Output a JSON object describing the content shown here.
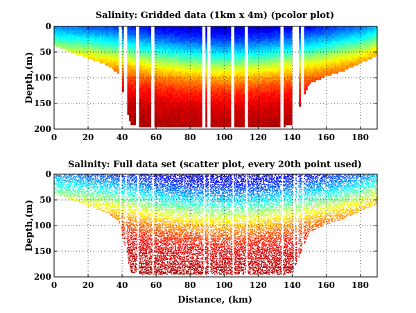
{
  "chart_data": [
    {
      "type": "heatmap",
      "title": "Salinity: Gridded data (1km x 4m) (pcolor plot)",
      "xlabel": "",
      "ylabel": "Depth,(m)",
      "xlim": [
        0,
        190
      ],
      "ylim": [
        200,
        0
      ],
      "xticks": [
        0,
        20,
        40,
        60,
        80,
        100,
        120,
        140,
        160,
        180
      ],
      "yticks": [
        0,
        50,
        100,
        150,
        200
      ],
      "grid": true,
      "colormap": "jet",
      "data_bottom_profile": {
        "distance_km": [
          0,
          10,
          20,
          30,
          38,
          45,
          55,
          70,
          90,
          110,
          130,
          140,
          150,
          160,
          170,
          180,
          190
        ],
        "depth_m": [
          35,
          48,
          60,
          72,
          90,
          190,
          195,
          195,
          195,
          195,
          195,
          190,
          110,
          95,
          85,
          70,
          55
        ]
      },
      "gaps_km": [
        39,
        42,
        49,
        58,
        88,
        91,
        105,
        113,
        134,
        141,
        143,
        146
      ],
      "isohaline_depth_m": {
        "distance_km": [
          0,
          20,
          40,
          60,
          80,
          100,
          120,
          140,
          160,
          180,
          190
        ],
        "depth_m": [
          28,
          34,
          42,
          55,
          62,
          65,
          62,
          55,
          45,
          32,
          20
        ]
      }
    },
    {
      "type": "scatter",
      "title": "Salinity: Full data set (scatter plot, every 20th point used)",
      "xlabel": "Distance, (km)",
      "ylabel": "Depth,(m)",
      "xlim": [
        0,
        190
      ],
      "ylim": [
        200,
        0
      ],
      "xticks": [
        0,
        20,
        40,
        60,
        80,
        100,
        120,
        140,
        160,
        180
      ],
      "yticks": [
        0,
        50,
        100,
        150,
        200
      ],
      "grid": true,
      "colormap": "jet",
      "data_bottom_profile": {
        "distance_km": [
          0,
          10,
          20,
          30,
          38,
          45,
          55,
          70,
          90,
          110,
          130,
          140,
          150,
          160,
          170,
          180,
          190
        ],
        "depth_m": [
          35,
          48,
          60,
          72,
          90,
          190,
          195,
          195,
          195,
          195,
          195,
          190,
          110,
          95,
          85,
          70,
          55
        ]
      },
      "gaps_km": [
        39,
        42,
        49,
        58,
        88,
        91,
        105,
        113,
        134,
        141,
        143,
        146
      ],
      "isohaline_depth_m": {
        "distance_km": [
          0,
          20,
          40,
          60,
          80,
          100,
          120,
          140,
          160,
          180,
          190
        ],
        "depth_m": [
          28,
          34,
          42,
          55,
          62,
          65,
          62,
          55,
          45,
          32,
          20
        ]
      }
    }
  ]
}
